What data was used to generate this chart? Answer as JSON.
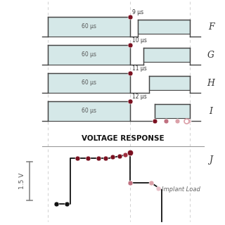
{
  "bg_color": "#ffffff",
  "pulse_rows": [
    {
      "label": "F",
      "us_label": "9 μs"
    },
    {
      "label": "G",
      "us_label": "10 μs"
    },
    {
      "label": "H",
      "us_label": "11 μs"
    },
    {
      "label": "I",
      "us_label": "12 μs"
    }
  ],
  "sixty_us_label": "60 μs",
  "voltage_label": "VOLTAGE RESPONSE",
  "j_label": "J",
  "implant_label": "Implant Load",
  "scale_label": "1.5 V",
  "dot_dark": "#7a1020",
  "dot_mid": "#c07080",
  "dot_light": "#dba0a8",
  "dot_open_color": "#e8b8c0",
  "line_color": "#111111",
  "pulse_fill": "#d5e8e8",
  "pulse_edge": "#444444",
  "grid_color": "#d0d0d0",
  "title_color": "#111111",
  "scale_bar_color": "#888888"
}
